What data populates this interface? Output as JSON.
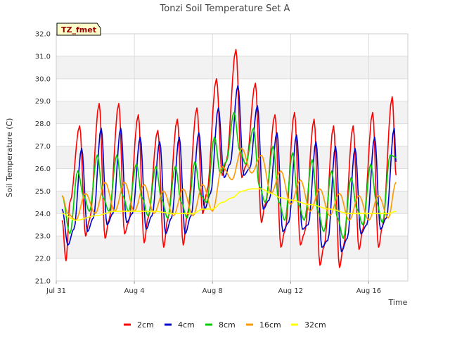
{
  "chart_data": {
    "type": "line",
    "title": "Tonzi Soil Temperature Set A",
    "xlabel": "Time",
    "ylabel": "Soil Temperature (C)",
    "ylim": [
      21.0,
      32.0
    ],
    "xlim_days": [
      0,
      18
    ],
    "x_ticks": [
      {
        "day": 0,
        "label": "Jul 31"
      },
      {
        "day": 4,
        "label": "Aug 4"
      },
      {
        "day": 8,
        "label": "Aug 8"
      },
      {
        "day": 12,
        "label": "Aug 12"
      },
      {
        "day": 16,
        "label": "Aug 16"
      }
    ],
    "y_ticks": [
      "21.0",
      "22.0",
      "23.0",
      "24.0",
      "25.0",
      "26.0",
      "27.0",
      "28.0",
      "29.0",
      "30.0",
      "31.0",
      "32.0"
    ],
    "grid": true,
    "legend_position": "bottom",
    "tag_label": "TZ_fmet",
    "series": [
      {
        "name": "2cm",
        "color": "#ff0000",
        "x": [
          0.3,
          0.5,
          0.7,
          1.2,
          1.5,
          1.7,
          2.2,
          2.5,
          2.7,
          3.2,
          3.5,
          3.7,
          4.2,
          4.5,
          4.7,
          5.2,
          5.5,
          5.7,
          6.2,
          6.5,
          6.7,
          7.2,
          7.5,
          7.7,
          8.2,
          8.5,
          8.7,
          9.2,
          9.5,
          9.7,
          10.2,
          10.5,
          10.7,
          11.2,
          11.5,
          11.7,
          12.2,
          12.5,
          12.7,
          13.2,
          13.5,
          13.7,
          14.2,
          14.5,
          14.7,
          15.2,
          15.5,
          15.7,
          16.2,
          16.5,
          16.7,
          17.2,
          17.4
        ],
        "y": [
          23.7,
          21.9,
          24.5,
          27.9,
          23.0,
          23.7,
          28.9,
          22.9,
          23.7,
          28.9,
          23.1,
          23.6,
          28.4,
          22.7,
          23.8,
          27.7,
          22.5,
          23.7,
          28.2,
          22.6,
          23.9,
          28.7,
          24.0,
          24.9,
          30.0,
          25.7,
          26.3,
          31.3,
          25.6,
          26.1,
          29.8,
          23.6,
          24.4,
          28.4,
          22.5,
          23.2,
          28.5,
          22.6,
          23.1,
          28.2,
          21.7,
          22.5,
          27.9,
          21.6,
          22.5,
          27.9,
          22.4,
          23.3,
          28.5,
          22.5,
          23.4,
          29.2,
          25.7
        ]
      },
      {
        "name": "4cm",
        "color": "#0000cc",
        "x": [
          0.3,
          0.6,
          0.9,
          1.3,
          1.6,
          1.9,
          2.3,
          2.6,
          2.9,
          3.3,
          3.6,
          3.9,
          4.3,
          4.6,
          4.9,
          5.3,
          5.6,
          5.9,
          6.3,
          6.6,
          6.9,
          7.3,
          7.6,
          7.9,
          8.3,
          8.6,
          8.9,
          9.3,
          9.6,
          9.9,
          10.3,
          10.6,
          10.9,
          11.3,
          11.6,
          11.9,
          12.3,
          12.6,
          12.9,
          13.3,
          13.6,
          13.9,
          14.3,
          14.6,
          14.9,
          15.3,
          15.6,
          15.9,
          16.3,
          16.6,
          16.9,
          17.3,
          17.4
        ],
        "y": [
          24.2,
          22.6,
          23.3,
          26.9,
          23.2,
          23.8,
          27.8,
          23.5,
          24.0,
          27.8,
          23.6,
          24.0,
          27.4,
          23.3,
          23.9,
          27.2,
          23.1,
          23.8,
          27.4,
          23.1,
          23.9,
          27.6,
          24.2,
          24.9,
          28.7,
          25.6,
          26.2,
          29.7,
          25.7,
          26.0,
          28.8,
          24.2,
          24.6,
          27.6,
          23.2,
          23.6,
          27.5,
          23.3,
          23.5,
          27.2,
          22.5,
          22.8,
          27.0,
          22.3,
          22.9,
          26.9,
          23.1,
          23.5,
          27.4,
          23.3,
          23.8,
          27.8,
          26.3
        ]
      },
      {
        "name": "8cm",
        "color": "#00cc00",
        "x": [
          0.3,
          0.7,
          1.1,
          1.4,
          1.7,
          2.1,
          2.4,
          2.7,
          3.1,
          3.4,
          3.7,
          4.1,
          4.4,
          4.7,
          5.1,
          5.4,
          5.7,
          6.1,
          6.4,
          6.7,
          7.1,
          7.4,
          7.7,
          8.1,
          8.4,
          8.7,
          9.1,
          9.4,
          9.7,
          10.1,
          10.4,
          10.7,
          11.1,
          11.4,
          11.7,
          12.1,
          12.4,
          12.7,
          13.1,
          13.4,
          13.7,
          14.1,
          14.4,
          14.7,
          15.1,
          15.4,
          15.7,
          16.1,
          16.4,
          16.7,
          17.1,
          17.4
        ],
        "y": [
          24.8,
          23.1,
          25.9,
          24.8,
          24.1,
          26.6,
          24.7,
          24.1,
          26.6,
          24.8,
          24.1,
          26.2,
          24.7,
          23.9,
          26.1,
          24.6,
          23.8,
          26.1,
          24.5,
          23.8,
          26.3,
          24.8,
          24.5,
          27.4,
          25.8,
          26.3,
          28.5,
          26.8,
          26.2,
          27.8,
          25.2,
          24.5,
          27.0,
          24.5,
          23.7,
          26.7,
          24.4,
          23.7,
          26.4,
          24.1,
          23.2,
          25.9,
          23.8,
          22.9,
          25.6,
          24.2,
          23.5,
          26.2,
          24.5,
          23.6,
          26.6,
          26.5
        ]
      },
      {
        "name": "16cm",
        "color": "#ff9900",
        "x": [
          0.3,
          0.6,
          1.0,
          1.5,
          2.0,
          2.5,
          3.0,
          3.5,
          4.0,
          4.5,
          5.0,
          5.5,
          6.0,
          6.5,
          7.0,
          7.5,
          8.0,
          8.5,
          9.0,
          9.5,
          10.0,
          10.5,
          11.0,
          11.5,
          12.0,
          12.5,
          13.0,
          13.5,
          14.0,
          14.5,
          15.0,
          15.5,
          16.0,
          16.5,
          17.0,
          17.4
        ],
        "y": [
          24.8,
          24.0,
          23.7,
          24.9,
          24.0,
          25.4,
          24.1,
          25.4,
          24.1,
          25.3,
          24.0,
          25.0,
          23.9,
          25.1,
          23.9,
          25.3,
          24.1,
          26.1,
          25.5,
          26.9,
          25.8,
          26.6,
          24.9,
          25.9,
          24.4,
          25.5,
          24.1,
          25.1,
          23.9,
          24.9,
          23.7,
          24.8,
          23.7,
          24.8,
          23.8,
          25.4
        ]
      },
      {
        "name": "32cm",
        "color": "#ffff00",
        "x": [
          0.3,
          1.0,
          2.0,
          3.0,
          4.0,
          5.0,
          6.0,
          7.0,
          7.5,
          8.0,
          8.5,
          9.0,
          9.5,
          10.0,
          10.5,
          11.0,
          11.5,
          12.0,
          13.0,
          14.0,
          15.0,
          16.0,
          17.0,
          17.4
        ],
        "y": [
          24.0,
          23.7,
          23.9,
          24.1,
          24.1,
          24.1,
          24.0,
          24.0,
          24.2,
          24.2,
          24.5,
          24.7,
          25.0,
          25.1,
          25.1,
          24.9,
          24.7,
          24.6,
          24.4,
          24.2,
          24.0,
          24.0,
          24.0,
          24.1
        ]
      }
    ]
  }
}
